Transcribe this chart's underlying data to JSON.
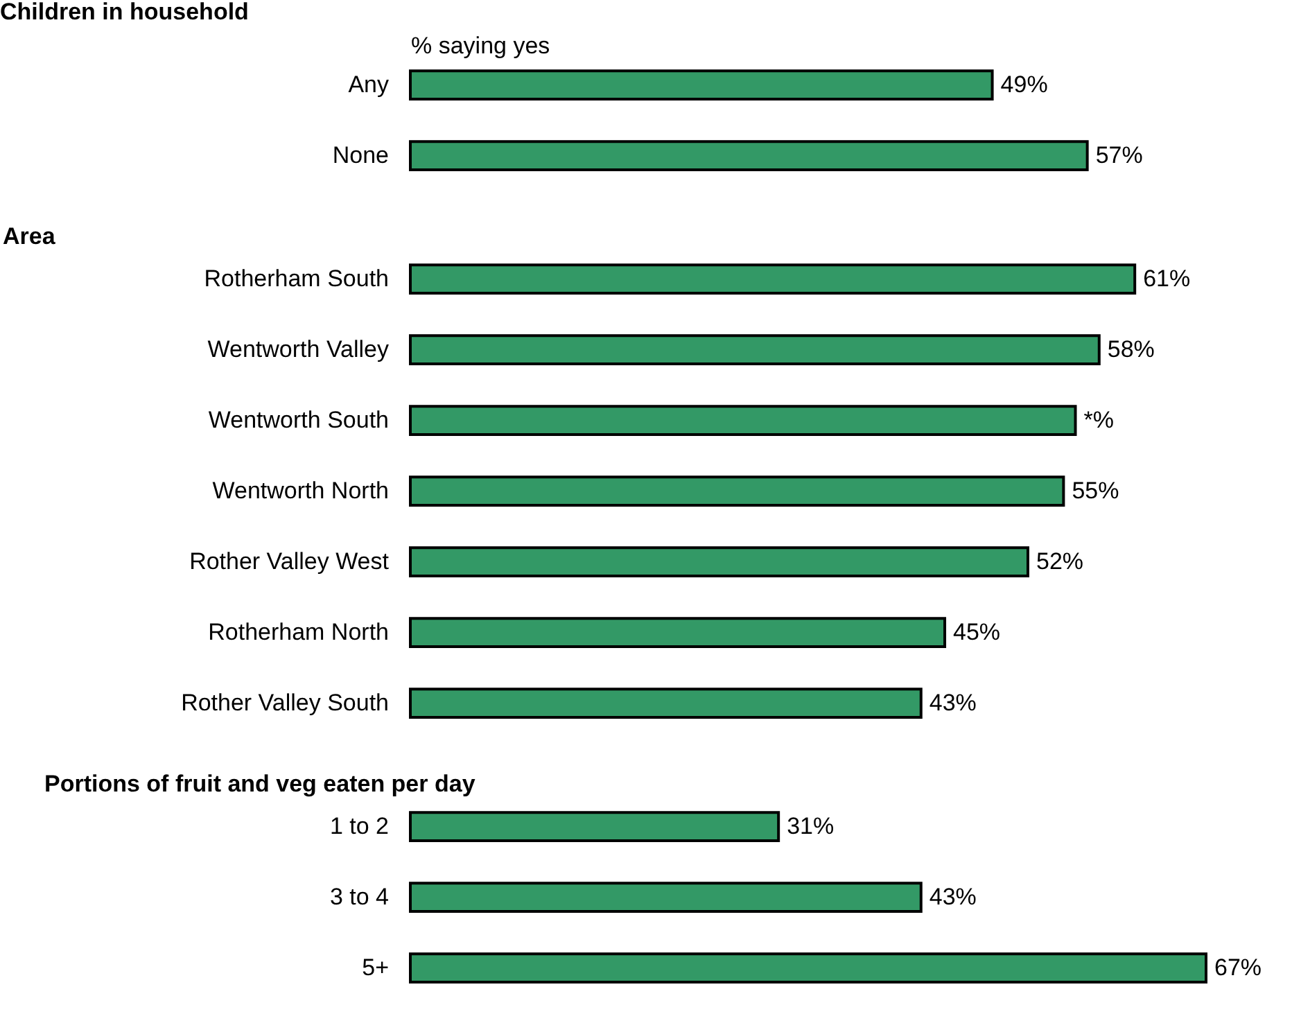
{
  "chart_data": [
    {
      "type": "bar",
      "orientation": "horizontal",
      "title": "Children in household",
      "xlabel": "% saying yes",
      "tick_labels": "y",
      "categories": [
        "Any",
        "None"
      ],
      "values": [
        49,
        57
      ],
      "value_labels": [
        "49%",
        "57%"
      ],
      "color": "#339966"
    },
    {
      "type": "bar",
      "orientation": "horizontal",
      "title": "Area",
      "tick_labels": "y",
      "categories": [
        "Rotherham South",
        "Wentworth Valley",
        "Wentworth South",
        "Wentworth North",
        "Rother Valley West",
        "Rotherham North",
        "Rother Valley South"
      ],
      "values": [
        61,
        58,
        56,
        55,
        52,
        45,
        43
      ],
      "value_labels": [
        "61%",
        "58%",
        "*%",
        "55%",
        "52%",
        "45%",
        "43%"
      ],
      "color": "#339966"
    },
    {
      "type": "bar",
      "orientation": "horizontal",
      "title": "Portions of fruit and veg eaten per day",
      "tick_labels": "y",
      "categories": [
        "1 to 2",
        "3 to 4",
        "5+"
      ],
      "values": [
        31,
        43,
        67
      ],
      "value_labels": [
        "31%",
        "43%",
        "67%"
      ],
      "color": "#339966"
    }
  ]
}
